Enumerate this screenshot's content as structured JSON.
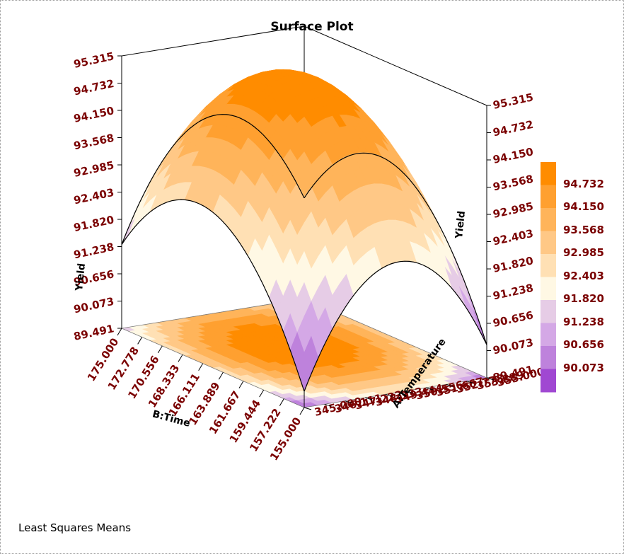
{
  "title": "Surface Plot",
  "footer": "Least Squares Means",
  "chart_data": {
    "type": "surface3d",
    "zlabel": "Yield",
    "xlabel": "A:Temperature",
    "ylabel": "B:Time",
    "z_ticks": [
      "89.491",
      "90.073",
      "90.656",
      "91.238",
      "91.820",
      "92.403",
      "92.985",
      "93.568",
      "94.150",
      "94.732",
      "95.315"
    ],
    "temperature_ticks": [
      "345.000",
      "346.111",
      "347.222",
      "348.333",
      "349.444",
      "350.556",
      "351.667",
      "352.778",
      "353.889",
      "355.000"
    ],
    "time_ticks": [
      "175.000",
      "172.778",
      "170.556",
      "168.333",
      "166.111",
      "163.889",
      "161.667",
      "159.444",
      "157.222",
      "155.000"
    ],
    "zlim": [
      89.491,
      95.315
    ],
    "xlim": [
      345,
      355
    ],
    "ylim": [
      155,
      175
    ],
    "legend": {
      "placement": "right",
      "labels": [
        "94.732",
        "94.150",
        "93.568",
        "92.985",
        "92.403",
        "91.820",
        "91.238",
        "90.656",
        "90.073"
      ],
      "colors": [
        "#ff8c00",
        "#ffa030",
        "#ffb45a",
        "#ffc886",
        "#ffe0b4",
        "#fff8e4",
        "#e6cce6",
        "#d4a8e6",
        "#be82dc",
        "#a048d2"
      ]
    },
    "peak_yield": 95.315,
    "contour_levels": [
      89.491,
      90.073,
      90.656,
      91.238,
      91.82,
      92.403,
      92.985,
      93.568,
      94.15,
      94.732,
      95.315
    ]
  }
}
